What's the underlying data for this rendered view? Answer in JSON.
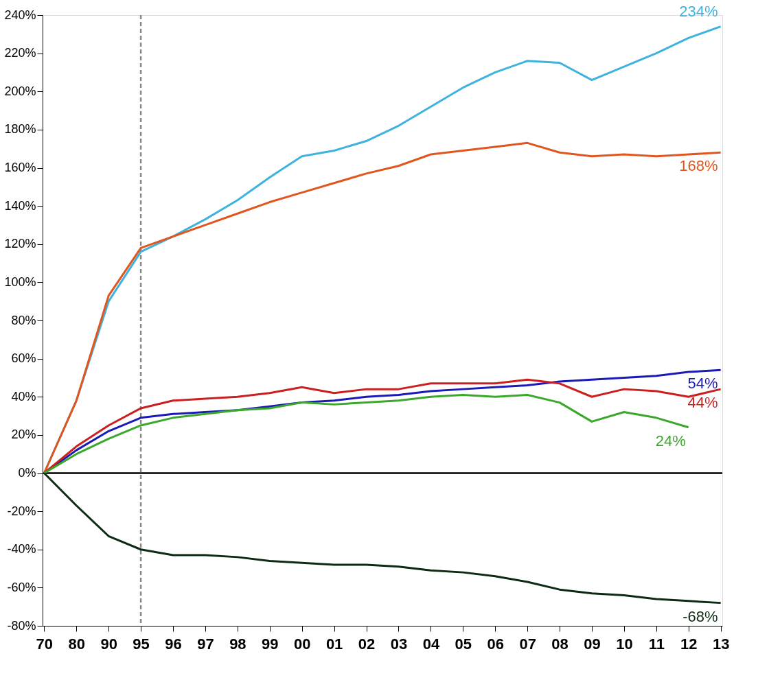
{
  "chart_data": {
    "type": "line",
    "categories": [
      "70",
      "80",
      "90",
      "95",
      "96",
      "97",
      "98",
      "99",
      "00",
      "01",
      "02",
      "03",
      "04",
      "05",
      "06",
      "07",
      "08",
      "09",
      "10",
      "11",
      "12",
      "13"
    ],
    "series": [
      {
        "color": "#3fb3e0",
        "values": [
          0,
          38,
          90,
          116,
          124,
          133,
          143,
          155,
          166,
          169,
          174,
          182,
          192,
          202,
          210,
          216,
          215,
          206,
          213,
          220,
          228,
          234
        ]
      },
      {
        "color": "#e0561e",
        "values": [
          0,
          38,
          93,
          118,
          124,
          130,
          136,
          142,
          147,
          152,
          157,
          161,
          167,
          169,
          171,
          173,
          168,
          166,
          167,
          166,
          167,
          168
        ]
      },
      {
        "color": "#1a1ab8",
        "values": [
          0,
          12,
          22,
          29,
          31,
          32,
          33,
          35,
          37,
          38,
          40,
          41,
          43,
          44,
          45,
          46,
          48,
          49,
          50,
          51,
          53,
          54
        ]
      },
      {
        "color": "#cc1f1f",
        "values": [
          0,
          14,
          25,
          34,
          38,
          39,
          40,
          42,
          45,
          42,
          44,
          44,
          47,
          47,
          47,
          49,
          47,
          40,
          44,
          43,
          40,
          44
        ]
      },
      {
        "color": "#3aa82a",
        "values": [
          0,
          10,
          18,
          25,
          29,
          31,
          33,
          34,
          37,
          36,
          37,
          38,
          40,
          41,
          40,
          41,
          37,
          27,
          32,
          29,
          24,
          null
        ]
      },
      {
        "color": "#0d2a12",
        "values": [
          0,
          -17,
          -33,
          -40,
          -43,
          -43,
          -44,
          -46,
          -47,
          -48,
          -48,
          -49,
          -51,
          -52,
          -54,
          -57,
          -61,
          -63,
          -64,
          -66,
          -67,
          -68
        ]
      }
    ],
    "annotations": [
      "234%",
      "168%",
      "54%",
      "44%",
      "24%",
      "-68%"
    ],
    "ylim": [
      -80,
      240
    ],
    "yticks": [
      {
        "value": -80,
        "label": "-80%"
      },
      {
        "value": -60,
        "label": "-60%"
      },
      {
        "value": -40,
        "label": "-40%"
      },
      {
        "value": -20,
        "label": "-20%"
      },
      {
        "value": 0,
        "label": "0%"
      },
      {
        "value": 20,
        "label": "20%"
      },
      {
        "value": 40,
        "label": "40%"
      },
      {
        "value": 60,
        "label": "60%"
      },
      {
        "value": 80,
        "label": "80%"
      },
      {
        "value": 100,
        "label": "100%"
      },
      {
        "value": 120,
        "label": "120%"
      },
      {
        "value": 140,
        "label": "140%"
      },
      {
        "value": 160,
        "label": "160%"
      },
      {
        "value": 180,
        "label": "180%"
      },
      {
        "value": 200,
        "label": "200%"
      },
      {
        "value": 220,
        "label": "220%"
      },
      {
        "value": 240,
        "label": "240%"
      }
    ],
    "ref_lines": [
      {
        "axis": "x",
        "value": "95",
        "color": "#888888",
        "line_style": "dashed"
      },
      {
        "axis": "y",
        "value": 0,
        "color": "#000000",
        "line_style": "solid"
      }
    ],
    "grid": false,
    "marker": "none",
    "line_style": "solid"
  }
}
